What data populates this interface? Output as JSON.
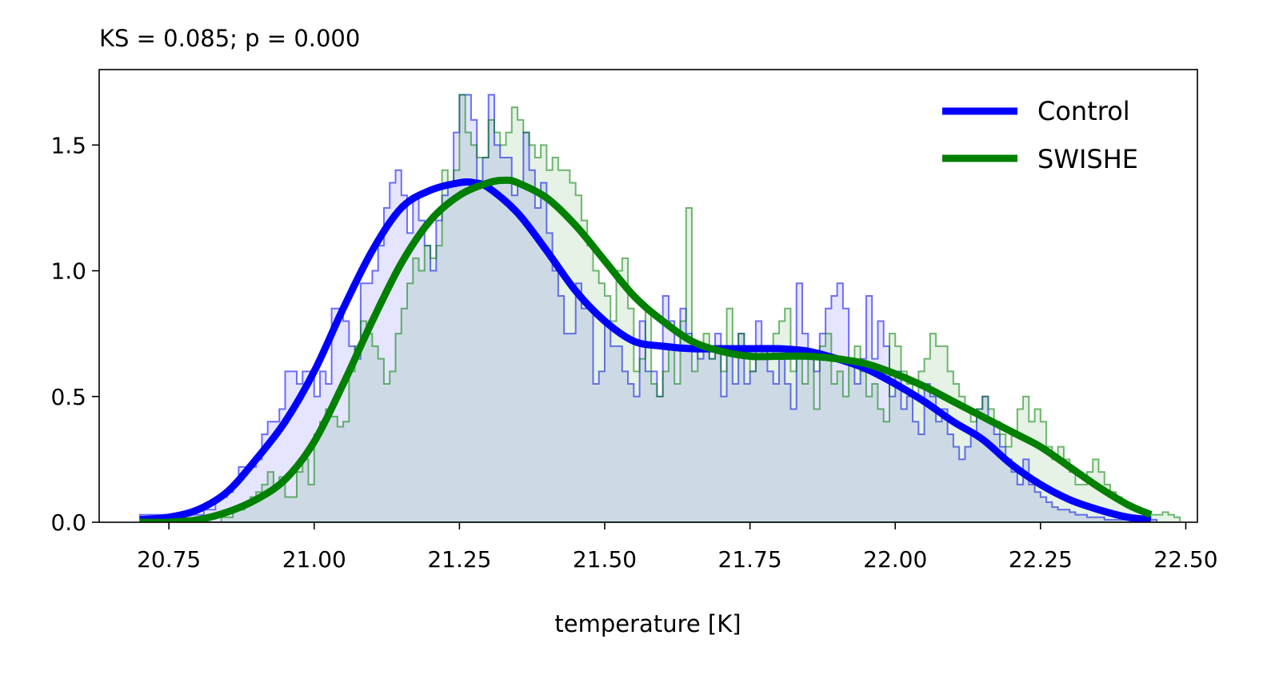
{
  "chart_data": {
    "type": "histogram-kde",
    "title": "KS = 0.085; p = 0.000",
    "xlabel": "temperature [K]",
    "ylabel": "",
    "xlim": [
      20.63,
      22.52
    ],
    "ylim": [
      0,
      1.8
    ],
    "xticks": [
      20.75,
      21.0,
      21.25,
      21.5,
      21.75,
      22.0,
      22.25,
      22.5
    ],
    "xtick_labels": [
      "20.75",
      "21.00",
      "21.25",
      "21.50",
      "21.75",
      "22.00",
      "22.25",
      "22.50"
    ],
    "yticks": [
      0.0,
      0.5,
      1.0,
      1.5
    ],
    "ytick_labels": [
      "0.0",
      "0.5",
      "1.0",
      "1.5"
    ],
    "grid": false,
    "legend_position": "top-right",
    "legend": [
      "Control",
      "SWISHE"
    ],
    "colors": {
      "Control": "#0000ff",
      "SWISHE": "#008000"
    },
    "bins": {
      "start": 20.7,
      "width": 0.01,
      "count": 175
    },
    "series": [
      {
        "name": "Control",
        "color": "#0000ff",
        "hist": [
          0.03,
          0.03,
          0.03,
          0.03,
          0.03,
          0.03,
          0.03,
          0.03,
          0.03,
          0.03,
          0.03,
          0.05,
          0.05,
          0.1,
          0.1,
          0.12,
          0.15,
          0.22,
          0.22,
          0.22,
          0.25,
          0.35,
          0.4,
          0.4,
          0.45,
          0.6,
          0.6,
          0.55,
          0.6,
          0.6,
          0.5,
          0.6,
          0.55,
          0.85,
          0.85,
          0.8,
          0.7,
          0.65,
          0.95,
          0.95,
          1.0,
          1.1,
          1.25,
          1.35,
          1.4,
          1.3,
          1.15,
          1.3,
          1.2,
          1.1,
          1.0,
          1.2,
          1.3,
          1.35,
          1.55,
          1.7,
          1.7,
          1.6,
          1.35,
          1.45,
          1.7,
          1.5,
          1.45,
          1.45,
          1.3,
          1.35,
          1.55,
          1.4,
          1.25,
          1.35,
          1.15,
          1.0,
          0.9,
          0.75,
          0.75,
          0.95,
          0.85,
          0.85,
          0.55,
          0.6,
          0.8,
          0.7,
          0.7,
          0.6,
          0.55,
          0.5,
          0.8,
          0.6,
          0.6,
          0.5,
          0.9,
          0.8,
          0.7,
          0.85,
          0.75,
          0.7,
          0.65,
          0.7,
          0.65,
          0.75,
          0.5,
          0.7,
          0.55,
          0.75,
          0.55,
          0.6,
          0.8,
          0.7,
          0.6,
          0.55,
          0.65,
          0.55,
          0.45,
          0.95,
          0.75,
          0.65,
          0.6,
          0.75,
          0.85,
          0.9,
          0.95,
          0.85,
          0.65,
          0.55,
          0.65,
          0.9,
          0.65,
          0.8,
          0.7,
          0.5,
          0.6,
          0.45,
          0.5,
          0.4,
          0.35,
          0.55,
          0.5,
          0.4,
          0.45,
          0.35,
          0.3,
          0.25,
          0.3,
          0.35,
          0.45,
          0.5,
          0.4,
          0.35,
          0.3,
          0.25,
          0.2,
          0.15,
          0.25,
          0.15,
          0.12,
          0.1,
          0.08,
          0.06,
          0.05,
          0.05,
          0.04,
          0.03,
          0.03,
          0.02,
          0.02,
          0.02,
          0.01,
          0.01,
          0.01,
          0.01,
          0.01,
          0.01,
          0.01,
          0.01,
          0.01
        ],
        "kde_x": [
          20.7,
          20.75,
          20.8,
          20.85,
          20.9,
          20.95,
          21.0,
          21.05,
          21.1,
          21.15,
          21.2,
          21.25,
          21.275,
          21.3,
          21.35,
          21.4,
          21.45,
          21.5,
          21.55,
          21.6,
          21.65,
          21.7,
          21.75,
          21.8,
          21.85,
          21.9,
          21.95,
          22.0,
          22.05,
          22.1,
          22.15,
          22.2,
          22.25,
          22.3,
          22.35,
          22.4,
          22.44
        ],
        "kde_y": [
          0.01,
          0.02,
          0.05,
          0.12,
          0.25,
          0.4,
          0.6,
          0.85,
          1.08,
          1.25,
          1.32,
          1.35,
          1.35,
          1.33,
          1.23,
          1.08,
          0.92,
          0.8,
          0.72,
          0.7,
          0.69,
          0.69,
          0.69,
          0.69,
          0.68,
          0.65,
          0.61,
          0.55,
          0.48,
          0.4,
          0.33,
          0.23,
          0.15,
          0.09,
          0.05,
          0.02,
          0.01
        ]
      },
      {
        "name": "SWISHE",
        "color": "#008000",
        "hist": [
          0.0,
          0.0,
          0.0,
          0.0,
          0.0,
          0.0,
          0.0,
          0.0,
          0.0,
          0.0,
          0.0,
          0.0,
          0.0,
          0.0,
          0.02,
          0.02,
          0.05,
          0.05,
          0.08,
          0.1,
          0.12,
          0.15,
          0.2,
          0.15,
          0.18,
          0.1,
          0.1,
          0.2,
          0.25,
          0.15,
          0.35,
          0.4,
          0.45,
          0.42,
          0.38,
          0.4,
          0.6,
          0.7,
          0.8,
          0.75,
          0.7,
          0.65,
          0.55,
          0.6,
          0.75,
          0.85,
          0.95,
          1.05,
          1.0,
          1.1,
          1.05,
          1.1,
          1.4,
          1.35,
          1.4,
          1.7,
          1.55,
          1.5,
          1.45,
          1.45,
          1.6,
          1.55,
          1.5,
          1.55,
          1.65,
          1.6,
          1.55,
          1.5,
          1.45,
          1.5,
          1.4,
          1.45,
          1.4,
          1.4,
          1.35,
          1.3,
          1.2,
          1.1,
          1.0,
          0.95,
          0.9,
          0.8,
          1.0,
          1.05,
          0.85,
          0.6,
          0.65,
          0.85,
          0.55,
          0.5,
          0.6,
          0.7,
          0.55,
          0.8,
          1.25,
          0.6,
          0.7,
          0.75,
          0.65,
          0.7,
          0.6,
          0.85,
          0.7,
          0.75,
          0.7,
          0.6,
          0.65,
          0.7,
          0.65,
          0.75,
          0.8,
          0.85,
          0.6,
          0.65,
          0.55,
          0.65,
          0.45,
          0.7,
          0.75,
          0.55,
          0.6,
          0.5,
          0.65,
          0.7,
          0.6,
          0.5,
          0.55,
          0.45,
          0.4,
          0.75,
          0.7,
          0.6,
          0.55,
          0.5,
          0.6,
          0.65,
          0.75,
          0.7,
          0.7,
          0.6,
          0.55,
          0.5,
          0.45,
          0.4,
          0.45,
          0.5,
          0.45,
          0.4,
          0.35,
          0.3,
          0.35,
          0.45,
          0.5,
          0.4,
          0.45,
          0.4,
          0.3,
          0.25,
          0.3,
          0.25,
          0.2,
          0.15,
          0.15,
          0.2,
          0.25,
          0.2,
          0.15,
          0.12,
          0.1,
          0.08,
          0.06,
          0.05,
          0.05,
          0.04,
          0.03,
          0.03,
          0.04,
          0.03,
          0.02
        ],
        "kde_x": [
          20.7,
          20.75,
          20.8,
          20.85,
          20.9,
          20.95,
          21.0,
          21.05,
          21.1,
          21.15,
          21.2,
          21.25,
          21.3,
          21.33,
          21.35,
          21.4,
          21.45,
          21.5,
          21.55,
          21.6,
          21.65,
          21.7,
          21.75,
          21.8,
          21.85,
          21.9,
          21.95,
          22.0,
          22.05,
          22.1,
          22.15,
          22.2,
          22.25,
          22.3,
          22.35,
          22.4,
          22.44
        ],
        "kde_y": [
          0.0,
          0.0,
          0.01,
          0.04,
          0.09,
          0.17,
          0.32,
          0.55,
          0.8,
          1.03,
          1.2,
          1.3,
          1.35,
          1.36,
          1.35,
          1.29,
          1.18,
          1.04,
          0.9,
          0.8,
          0.72,
          0.68,
          0.66,
          0.66,
          0.66,
          0.65,
          0.63,
          0.59,
          0.54,
          0.48,
          0.42,
          0.36,
          0.3,
          0.22,
          0.14,
          0.07,
          0.03
        ]
      }
    ]
  }
}
